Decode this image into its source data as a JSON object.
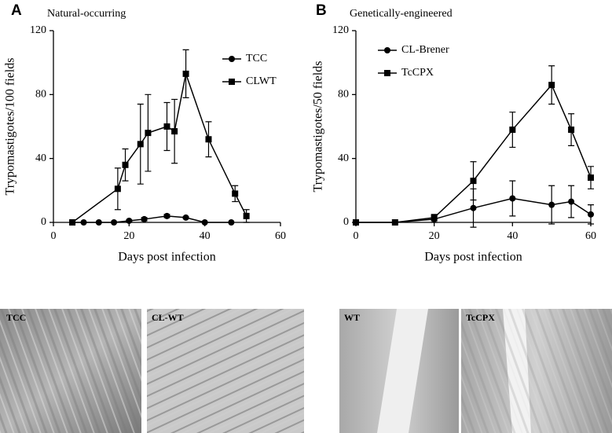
{
  "chart_data": [
    {
      "type": "line",
      "panel": "A",
      "title": "Natural-occurring",
      "xlabel": "Days post infection",
      "ylabel": "Trypomastigotes/100 fields",
      "xlim": [
        0,
        60
      ],
      "ylim": [
        0,
        120
      ],
      "xticks": [
        0,
        20,
        40,
        60
      ],
      "yticks": [
        0,
        40,
        80,
        120
      ],
      "legend": "upper right",
      "series": [
        {
          "name": "TCC",
          "marker": "circle",
          "color": "#000000",
          "x": [
            5,
            8,
            12,
            16,
            20,
            24,
            30,
            35,
            40,
            47
          ],
          "values": [
            0,
            0,
            0,
            0,
            1,
            2,
            4,
            3,
            0,
            0
          ],
          "errors": [
            0,
            0,
            0,
            0,
            0.5,
            1,
            1,
            0.5,
            0,
            0
          ]
        },
        {
          "name": "CLWT",
          "marker": "square",
          "color": "#000000",
          "x": [
            5,
            17,
            19,
            23,
            25,
            30,
            32,
            35,
            41,
            48,
            51
          ],
          "values": [
            0,
            21,
            36,
            49,
            56,
            60,
            57,
            93,
            52,
            18,
            4
          ],
          "errors": [
            0,
            13,
            10,
            25,
            24,
            15,
            20,
            15,
            11,
            5,
            4
          ]
        }
      ]
    },
    {
      "type": "line",
      "panel": "B",
      "title": "Genetically-engineered",
      "xlabel": "Days post infection",
      "ylabel": "Trypomastigotes/50 fields",
      "xlim": [
        0,
        60
      ],
      "ylim": [
        0,
        120
      ],
      "xticks": [
        0,
        20,
        40,
        60
      ],
      "yticks": [
        0,
        40,
        80,
        120
      ],
      "legend": "upper left",
      "series": [
        {
          "name": "CL-Brener",
          "marker": "circle",
          "color": "#000000",
          "x": [
            0,
            10,
            20,
            30,
            40,
            50,
            55,
            60
          ],
          "values": [
            0,
            0,
            2,
            9,
            15,
            11,
            13,
            5
          ],
          "errors": [
            0,
            0,
            2,
            12,
            11,
            12,
            10,
            6
          ]
        },
        {
          "name": "TcCPX",
          "marker": "square",
          "color": "#000000",
          "x": [
            0,
            10,
            20,
            30,
            40,
            50,
            55,
            60
          ],
          "values": [
            0,
            0,
            3,
            26,
            58,
            86,
            58,
            28
          ],
          "errors": [
            0,
            0,
            2,
            12,
            11,
            12,
            10,
            7
          ]
        }
      ]
    }
  ],
  "images": [
    {
      "label": "TCC"
    },
    {
      "label": "CL-WT"
    },
    {
      "label": "WT"
    },
    {
      "label": "TcCPX"
    }
  ]
}
